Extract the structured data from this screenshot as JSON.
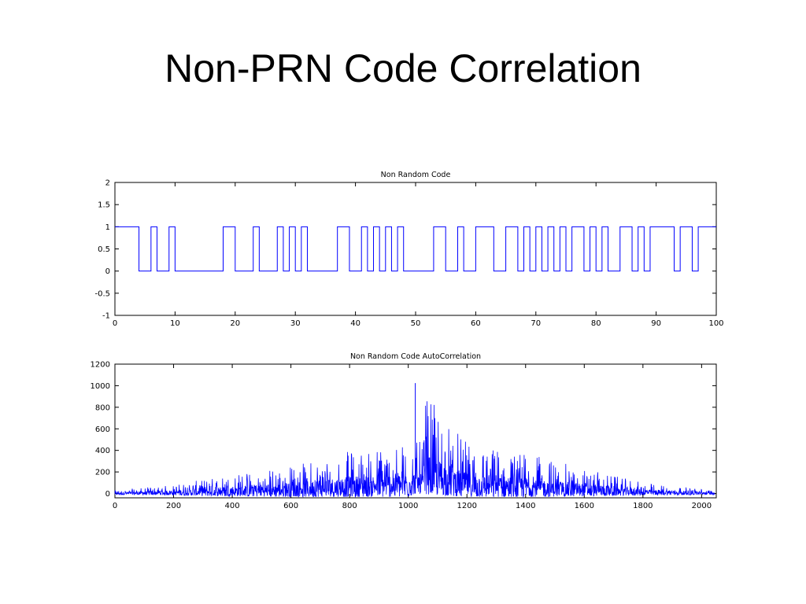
{
  "slide": {
    "title": "Non-PRN Code Correlation"
  },
  "colors": {
    "series": "#0000ff",
    "axis": "#000000",
    "background": "#ffffff"
  },
  "chart_data": [
    {
      "type": "line",
      "title": "Non Random Code",
      "xlabel": "",
      "ylabel": "",
      "step": true,
      "xlim": [
        0,
        100
      ],
      "ylim": [
        -1,
        2
      ],
      "grid": false,
      "xticks": [
        0,
        10,
        20,
        30,
        40,
        50,
        60,
        70,
        80,
        90,
        100
      ],
      "yticks": [
        -1,
        -0.5,
        0,
        0.5,
        1,
        1.5,
        2
      ],
      "ytick_labels": [
        "-1",
        "-0.5",
        "0",
        "0.5",
        "1",
        "1.5",
        "2"
      ],
      "series": [
        {
          "x": [
            0,
            4,
            6,
            7,
            9,
            10,
            18,
            20,
            23,
            24,
            27,
            28,
            29,
            30,
            31,
            32,
            37,
            39,
            41,
            42,
            43,
            44,
            45,
            46,
            47,
            48,
            53,
            55,
            57,
            58,
            60,
            63,
            65,
            67,
            68,
            69,
            70,
            71,
            72,
            73,
            74,
            75,
            76,
            78,
            79,
            80,
            81,
            82,
            84,
            86,
            87,
            88,
            89,
            93,
            94,
            96,
            97,
            100
          ],
          "values": [
            1,
            0,
            1,
            0,
            1,
            0,
            1,
            0,
            1,
            0,
            1,
            0,
            1,
            0,
            1,
            0,
            1,
            0,
            1,
            0,
            1,
            0,
            1,
            0,
            1,
            0,
            1,
            0,
            1,
            0,
            1,
            0,
            1,
            0,
            1,
            0,
            1,
            0,
            1,
            0,
            1,
            0,
            1,
            0,
            1,
            0,
            1,
            0,
            1,
            0,
            1,
            0,
            1,
            0,
            1,
            0,
            1,
            1
          ]
        }
      ]
    },
    {
      "type": "line",
      "title": "Non Random Code AutoCorrelation",
      "xlabel": "",
      "ylabel": "",
      "xlim": [
        0,
        2050
      ],
      "ylim": [
        -40,
        1200
      ],
      "grid": false,
      "xticks": [
        0,
        200,
        400,
        600,
        800,
        1000,
        1200,
        1400,
        1600,
        1800,
        2000
      ],
      "yticks": [
        0,
        200,
        400,
        600,
        800,
        1000,
        1200
      ],
      "peak": {
        "x": 1024,
        "y": 1024
      },
      "series": [
        {
          "sample_count": 2047,
          "envelope_x": [
            0,
            200,
            400,
            600,
            800,
            1000,
            1024,
            1200,
            1400,
            1600,
            1800,
            2047
          ],
          "envelope_max": [
            30,
            80,
            180,
            260,
            400,
            480,
            1024,
            470,
            380,
            230,
            100,
            30
          ],
          "envelope_min": [
            -10,
            -15,
            -25,
            -30,
            -30,
            -30,
            0,
            -30,
            -30,
            -25,
            -15,
            -10
          ]
        }
      ]
    }
  ]
}
